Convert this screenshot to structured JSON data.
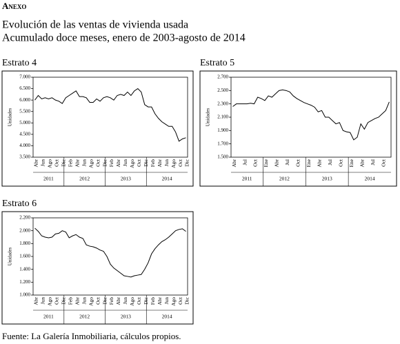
{
  "header": {
    "section": "Anexo",
    "title": "Evolución de las ventas de vivienda usada",
    "subtitle": "Acumulado doce meses, enero de 2003-agosto de 2014"
  },
  "chart_data": [
    {
      "type": "line",
      "title": "Estrato 4",
      "y_label": "Unidades",
      "color": "#000000",
      "categories": [
        "Abr",
        null,
        "Jun",
        null,
        "Ago",
        null,
        "Oct",
        null,
        "Dic",
        null,
        "Feb",
        null,
        "Abr",
        null,
        "Jun",
        null,
        "Ago",
        null,
        "Oct",
        null,
        "Dic",
        null,
        "Feb",
        null,
        "Abr",
        null,
        "Jun",
        null,
        "Ago",
        null,
        "Oct",
        null,
        "Dic",
        null,
        "Feb",
        null,
        "Abr",
        null,
        "Jun",
        null,
        "Ago",
        null,
        "Oct",
        null,
        "Dic"
      ],
      "x_groups": [
        "2011",
        "2012",
        "2013",
        "2014"
      ],
      "values": [
        6000,
        6200,
        6050,
        6100,
        6050,
        6100,
        6000,
        5950,
        5850,
        6100,
        6200,
        6300,
        6400,
        6150,
        6150,
        6100,
        5900,
        5900,
        6050,
        5950,
        6100,
        6150,
        6100,
        6000,
        6200,
        6250,
        6200,
        6350,
        6200,
        6400,
        6500,
        6350,
        5800,
        5700,
        5700,
        5400,
        5200,
        5050,
        4950,
        4850,
        4850,
        4600,
        4200,
        4300,
        4350
      ],
      "ylim": [
        3500,
        7000
      ],
      "yticks": [
        {
          "value": 3500,
          "label": "3.500"
        },
        {
          "value": 4000,
          "label": "4.000"
        },
        {
          "value": 4500,
          "label": "4.500"
        },
        {
          "value": 5000,
          "label": "5.000"
        },
        {
          "value": 5500,
          "label": "5.500"
        },
        {
          "value": 6000,
          "label": "6.000"
        },
        {
          "value": 6500,
          "label": "6.500"
        },
        {
          "value": 7000,
          "label": "7.000"
        }
      ]
    },
    {
      "type": "line",
      "title": "Estrato 5",
      "y_label": "Unidades",
      "color": "#000000",
      "categories": [
        "Abr",
        null,
        null,
        "Jul",
        null,
        null,
        "Oct",
        null,
        null,
        "Ene",
        null,
        null,
        "Abr",
        null,
        null,
        "Jul",
        null,
        null,
        "Oct",
        null,
        null,
        "Ene",
        null,
        null,
        "Abr",
        null,
        null,
        "Jul",
        null,
        null,
        "Oct",
        null,
        null,
        "Ene",
        null,
        null,
        "Abr",
        null,
        null,
        "Jul",
        null,
        null,
        "Oct",
        null,
        null
      ],
      "x_groups": [
        "2011",
        "2012",
        "2013",
        "2014"
      ],
      "values": [
        2260,
        2300,
        2300,
        2300,
        2300,
        2310,
        2300,
        2400,
        2380,
        2350,
        2420,
        2400,
        2450,
        2500,
        2510,
        2500,
        2480,
        2420,
        2380,
        2350,
        2320,
        2300,
        2280,
        2250,
        2180,
        2200,
        2100,
        2100,
        2050,
        2000,
        2020,
        1900,
        1880,
        1870,
        1760,
        1800,
        2000,
        1920,
        2020,
        2050,
        2080,
        2100,
        2150,
        2200,
        2330
      ],
      "ylim": [
        1500,
        2700
      ],
      "yticks": [
        {
          "value": 1500,
          "label": "1.500"
        },
        {
          "value": 1700,
          "label": "1.700"
        },
        {
          "value": 1900,
          "label": "1.900"
        },
        {
          "value": 2100,
          "label": "2.100"
        },
        {
          "value": 2300,
          "label": "2.300"
        },
        {
          "value": 2500,
          "label": "2.500"
        },
        {
          "value": 2700,
          "label": "2.700"
        }
      ]
    },
    {
      "type": "line",
      "title": "Estrato 6",
      "y_label": "Unidades",
      "color": "#000000",
      "categories": [
        "Abr",
        null,
        "Jun",
        null,
        "Ago",
        null,
        "Oct",
        null,
        "Dic",
        null,
        "Feb",
        null,
        "Abr",
        null,
        "Jun",
        null,
        "Ago",
        null,
        "Oct",
        null,
        "Dic",
        null,
        "Feb",
        null,
        "Abr",
        null,
        "Jun",
        null,
        "Ago",
        null,
        "Oct",
        null,
        "Dic",
        null,
        "Feb",
        null,
        "Abr",
        null,
        "Jun",
        null,
        "Ago",
        null,
        "Oct",
        null,
        "Dic"
      ],
      "x_groups": [
        "2011",
        "2012",
        "2013",
        "2014"
      ],
      "values": [
        2040,
        1990,
        1920,
        1900,
        1890,
        1900,
        1950,
        1960,
        2000,
        1980,
        1890,
        1920,
        1940,
        1900,
        1880,
        1780,
        1760,
        1750,
        1730,
        1700,
        1680,
        1600,
        1480,
        1420,
        1380,
        1340,
        1300,
        1290,
        1280,
        1300,
        1310,
        1320,
        1400,
        1500,
        1640,
        1720,
        1780,
        1830,
        1860,
        1900,
        1950,
        2000,
        2020,
        2030,
        1990
      ],
      "ylim": [
        1000,
        2200
      ],
      "yticks": [
        {
          "value": 1000,
          "label": "1.000"
        },
        {
          "value": 1200,
          "label": "1.200"
        },
        {
          "value": 1400,
          "label": "1.400"
        },
        {
          "value": 1600,
          "label": "1.600"
        },
        {
          "value": 1800,
          "label": "1.800"
        },
        {
          "value": 2000,
          "label": "2.000"
        },
        {
          "value": 2200,
          "label": "2.200"
        }
      ]
    }
  ],
  "source": "Fuente: La Galería Inmobiliaria, cálculos propios."
}
